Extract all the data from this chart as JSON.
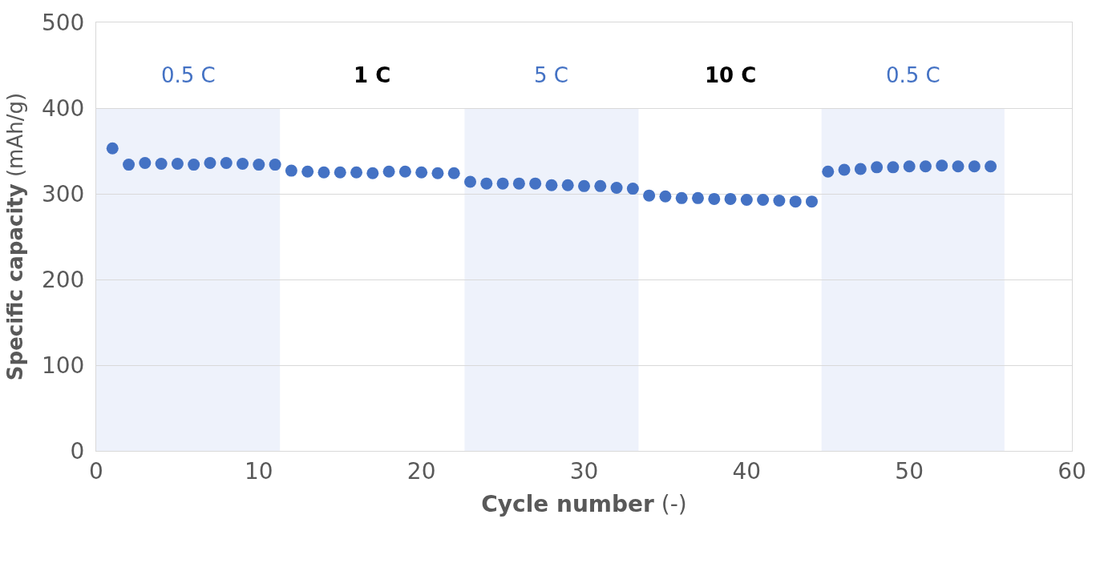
{
  "chart_data": {
    "type": "scatter",
    "xlabel": "Cycle number (-)",
    "ylabel": "Specific capacity (mAh/g)",
    "x": [
      1,
      2,
      3,
      4,
      5,
      6,
      7,
      8,
      9,
      10,
      11,
      12,
      13,
      14,
      15,
      16,
      17,
      18,
      19,
      20,
      21,
      22,
      23,
      24,
      25,
      26,
      27,
      28,
      29,
      30,
      31,
      32,
      33,
      34,
      35,
      36,
      37,
      38,
      39,
      40,
      41,
      42,
      43,
      44,
      45,
      46,
      47,
      48,
      49,
      50,
      51,
      52,
      53,
      54,
      55
    ],
    "series": [
      {
        "color": "#4472c4",
        "values": [
          353,
          334,
          336,
          335,
          335,
          334,
          336,
          336,
          335,
          334,
          334,
          327,
          326,
          325,
          325,
          325,
          324,
          326,
          326,
          325,
          324,
          324,
          314,
          312,
          312,
          312,
          312,
          310,
          310,
          309,
          309,
          307,
          306,
          298,
          297,
          295,
          295,
          294,
          294,
          293,
          293,
          292,
          291,
          291,
          326,
          328,
          329,
          331,
          331,
          332,
          332,
          333,
          332,
          332,
          332
        ]
      }
    ],
    "marker": "circle",
    "xlim": [
      0,
      60
    ],
    "xticks": [
      0,
      10,
      20,
      30,
      40,
      50,
      60
    ],
    "ylim": [
      0,
      500
    ],
    "yticks": [
      0,
      100,
      200,
      300,
      400,
      500
    ],
    "grid": "y",
    "annotations": [
      "1 C",
      "10 C"
    ],
    "bands": [
      {
        "axis": "x",
        "from": 0,
        "to": 11.3,
        "label": "0.5 C",
        "color": "#eef2fb"
      },
      {
        "axis": "x",
        "from": 22.65,
        "to": 33.35,
        "label": "5 C",
        "color": "#eef2fb"
      },
      {
        "axis": "x",
        "from": 44.6,
        "to": 55.85,
        "label": "0.5 C",
        "color": "#eef2fb"
      }
    ]
  }
}
